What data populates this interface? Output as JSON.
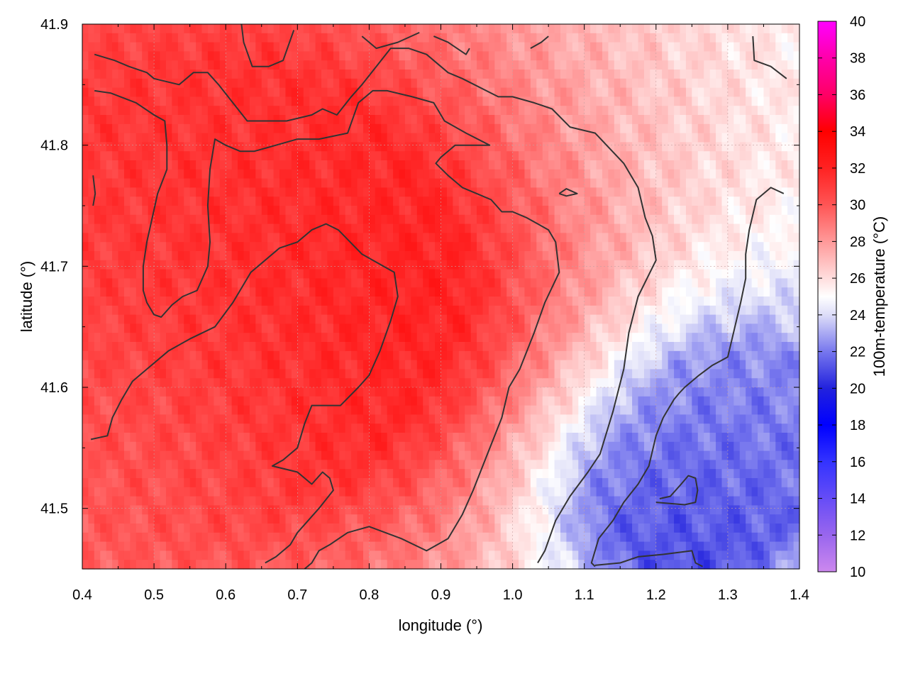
{
  "chart_data": {
    "type": "heatmap",
    "title": "",
    "xlabel": "longitude (°)",
    "ylabel": "latitude (°)",
    "colorbar_label": "100m-temperature (°C)",
    "xlim": [
      0.4,
      1.4
    ],
    "ylim": [
      41.45,
      41.9
    ],
    "x_ticks": [
      0.4,
      0.5,
      0.6,
      0.7,
      0.8,
      0.9,
      1.0,
      1.1,
      1.2,
      1.3,
      1.4
    ],
    "x_tick_labels": [
      "0.4",
      "0.5",
      "0.6",
      "0.7",
      "0.8",
      "0.9",
      "1.0",
      "1.1",
      "1.2",
      "1.3",
      "1.4"
    ],
    "y_ticks": [
      41.5,
      41.6,
      41.7,
      41.8,
      41.9
    ],
    "y_tick_labels": [
      "41.5",
      "41.6",
      "41.7",
      "41.8",
      "41.9"
    ],
    "colorbar_range": [
      10,
      40
    ],
    "colorbar_ticks": [
      10,
      12,
      14,
      16,
      18,
      20,
      22,
      24,
      26,
      28,
      30,
      32,
      34,
      36,
      38,
      40
    ],
    "colorbar_tick_labels": [
      "10",
      "12",
      "14",
      "16",
      "18",
      "20",
      "22",
      "24",
      "26",
      "28",
      "30",
      "32",
      "34",
      "36",
      "38",
      "40"
    ],
    "colormap": [
      {
        "value": 10,
        "color": "#cc88ee"
      },
      {
        "value": 12,
        "color": "#9966ee"
      },
      {
        "value": 16,
        "color": "#3333ff"
      },
      {
        "value": 18,
        "color": "#0000ff"
      },
      {
        "value": 20,
        "color": "#2222dd"
      },
      {
        "value": 22,
        "color": "#7777ee"
      },
      {
        "value": 24,
        "color": "#ddddf8"
      },
      {
        "value": 25,
        "color": "#ffffff"
      },
      {
        "value": 26,
        "color": "#ffdddd"
      },
      {
        "value": 28,
        "color": "#ff9999"
      },
      {
        "value": 30,
        "color": "#ff5555"
      },
      {
        "value": 32,
        "color": "#ff2222"
      },
      {
        "value": 34,
        "color": "#ff0000"
      },
      {
        "value": 36,
        "color": "#ff0066"
      },
      {
        "value": 38,
        "color": "#ff00aa"
      },
      {
        "value": 40,
        "color": "#ff00ff"
      }
    ],
    "grid": true,
    "contour_color": "#333333",
    "temperature_field": {
      "description_centers": [
        {
          "lon": 0.75,
          "lat": 41.66,
          "temp": 32.5,
          "spread": 0.22
        },
        {
          "lon": 0.55,
          "lat": 41.78,
          "temp": 31.0,
          "spread": 0.25
        },
        {
          "lon": 0.45,
          "lat": 41.55,
          "temp": 29.5,
          "spread": 0.2
        },
        {
          "lon": 1.22,
          "lat": 41.5,
          "temp": 20.5,
          "spread": 0.14
        },
        {
          "lon": 1.35,
          "lat": 41.58,
          "temp": 22.5,
          "spread": 0.14
        }
      ]
    },
    "contours": [
      {
        "level": 30,
        "points": [
          [
            0.417,
            41.875
          ],
          [
            0.445,
            41.87
          ],
          [
            0.465,
            41.865
          ],
          [
            0.49,
            41.86
          ],
          [
            0.5,
            41.855
          ],
          [
            0.535,
            41.85
          ],
          [
            0.555,
            41.86
          ],
          [
            0.575,
            41.86
          ],
          [
            0.59,
            41.85
          ],
          [
            0.61,
            41.835
          ],
          [
            0.63,
            41.82
          ],
          [
            0.66,
            41.82
          ],
          [
            0.685,
            41.82
          ],
          [
            0.72,
            41.825
          ],
          [
            0.735,
            41.83
          ],
          [
            0.755,
            41.825
          ],
          [
            0.775,
            41.84
          ],
          [
            0.79,
            41.85
          ],
          [
            0.81,
            41.865
          ],
          [
            0.83,
            41.88
          ],
          [
            0.855,
            41.88
          ],
          [
            0.88,
            41.875
          ],
          [
            0.91,
            41.86
          ],
          [
            0.93,
            41.855
          ],
          [
            0.98,
            41.84
          ],
          [
            1.0,
            41.84
          ],
          [
            1.03,
            41.835
          ],
          [
            1.055,
            41.83
          ],
          [
            1.08,
            41.815
          ],
          [
            1.115,
            41.81
          ],
          [
            1.155,
            41.785
          ],
          [
            1.175,
            41.765
          ],
          [
            1.185,
            41.74
          ],
          [
            1.195,
            41.725
          ],
          [
            1.2,
            41.705
          ],
          [
            1.175,
            41.675
          ],
          [
            1.162,
            41.645
          ],
          [
            1.155,
            41.615
          ],
          [
            1.14,
            41.58
          ],
          [
            1.122,
            41.545
          ],
          [
            1.105,
            41.53
          ],
          [
            1.08,
            41.51
          ],
          [
            1.06,
            41.49
          ],
          [
            1.045,
            41.465
          ],
          [
            1.035,
            41.455
          ]
        ]
      },
      {
        "level": 30,
        "points": [
          [
            0.417,
            41.845
          ],
          [
            0.44,
            41.843
          ],
          [
            0.475,
            41.835
          ],
          [
            0.5,
            41.825
          ],
          [
            0.515,
            41.82
          ],
          [
            0.518,
            41.8
          ],
          [
            0.518,
            41.78
          ],
          [
            0.505,
            41.76
          ],
          [
            0.49,
            41.72
          ],
          [
            0.485,
            41.7
          ],
          [
            0.485,
            41.68
          ],
          [
            0.49,
            41.67
          ],
          [
            0.5,
            41.66
          ],
          [
            0.51,
            41.658
          ],
          [
            0.525,
            41.668
          ],
          [
            0.54,
            41.675
          ],
          [
            0.56,
            41.68
          ],
          [
            0.575,
            41.7
          ],
          [
            0.578,
            41.72
          ],
          [
            0.575,
            41.75
          ],
          [
            0.578,
            41.78
          ],
          [
            0.585,
            41.805
          ],
          [
            0.6,
            41.8
          ],
          [
            0.62,
            41.795
          ],
          [
            0.64,
            41.795
          ],
          [
            0.67,
            41.8
          ],
          [
            0.7,
            41.805
          ],
          [
            0.73,
            41.805
          ],
          [
            0.77,
            41.81
          ],
          [
            0.785,
            41.835
          ],
          [
            0.805,
            41.845
          ],
          [
            0.825,
            41.845
          ],
          [
            0.86,
            41.84
          ],
          [
            0.89,
            41.835
          ],
          [
            0.905,
            41.82
          ],
          [
            0.935,
            41.81
          ],
          [
            0.968,
            41.8
          ],
          [
            0.94,
            41.8
          ],
          [
            0.92,
            41.8
          ],
          [
            0.9,
            41.79
          ],
          [
            0.893,
            41.785
          ],
          [
            0.91,
            41.775
          ],
          [
            0.93,
            41.765
          ],
          [
            0.95,
            41.76
          ],
          [
            0.97,
            41.755
          ],
          [
            0.985,
            41.745
          ],
          [
            1.0,
            41.745
          ],
          [
            1.02,
            41.74
          ],
          [
            1.05,
            41.73
          ],
          [
            1.06,
            41.72
          ],
          [
            1.065,
            41.695
          ],
          [
            1.045,
            41.67
          ],
          [
            1.03,
            41.645
          ],
          [
            1.01,
            41.615
          ],
          [
            0.995,
            41.6
          ],
          [
            0.985,
            41.575
          ],
          [
            0.965,
            41.545
          ],
          [
            0.945,
            41.515
          ],
          [
            0.93,
            41.495
          ],
          [
            0.91,
            41.475
          ],
          [
            0.88,
            41.465
          ],
          [
            0.845,
            41.475
          ],
          [
            0.8,
            41.485
          ],
          [
            0.77,
            41.48
          ],
          [
            0.745,
            41.47
          ],
          [
            0.73,
            41.465
          ],
          [
            0.72,
            41.455
          ],
          [
            0.71,
            41.45
          ]
        ]
      },
      {
        "level": 32,
        "points": [
          [
            0.412,
            41.557
          ],
          [
            0.435,
            41.56
          ],
          [
            0.442,
            41.575
          ],
          [
            0.455,
            41.59
          ],
          [
            0.47,
            41.605
          ],
          [
            0.49,
            41.615
          ],
          [
            0.52,
            41.63
          ],
          [
            0.55,
            41.64
          ],
          [
            0.585,
            41.65
          ],
          [
            0.61,
            41.67
          ],
          [
            0.635,
            41.695
          ],
          [
            0.655,
            41.705
          ],
          [
            0.675,
            41.715
          ],
          [
            0.7,
            41.72
          ],
          [
            0.72,
            41.73
          ],
          [
            0.74,
            41.735
          ],
          [
            0.757,
            41.73
          ],
          [
            0.79,
            41.71
          ],
          [
            0.835,
            41.695
          ],
          [
            0.84,
            41.675
          ],
          [
            0.83,
            41.655
          ],
          [
            0.815,
            41.63
          ],
          [
            0.8,
            41.61
          ],
          [
            0.785,
            41.6
          ],
          [
            0.76,
            41.585
          ],
          [
            0.72,
            41.585
          ],
          [
            0.71,
            41.57
          ],
          [
            0.7,
            41.55
          ],
          [
            0.68,
            41.54
          ],
          [
            0.665,
            41.535
          ],
          [
            0.7,
            41.53
          ],
          [
            0.72,
            41.52
          ],
          [
            0.735,
            41.53
          ],
          [
            0.745,
            41.525
          ],
          [
            0.75,
            41.515
          ],
          [
            0.73,
            41.5
          ],
          [
            0.7,
            41.48
          ],
          [
            0.69,
            41.47
          ],
          [
            0.67,
            41.46
          ],
          [
            0.655,
            41.455
          ]
        ]
      },
      {
        "level": 32,
        "points": [
          [
            0.415,
            41.775
          ],
          [
            0.418,
            41.76
          ],
          [
            0.415,
            41.75
          ]
        ]
      },
      {
        "level": 28,
        "points": [
          [
            0.622,
            41.9
          ],
          [
            0.625,
            41.885
          ],
          [
            0.637,
            41.865
          ],
          [
            0.66,
            41.865
          ],
          [
            0.68,
            41.87
          ],
          [
            0.695,
            41.895
          ]
        ]
      },
      {
        "level": 28,
        "points": [
          [
            0.79,
            41.89
          ],
          [
            0.81,
            41.88
          ],
          [
            0.84,
            41.885
          ],
          [
            0.87,
            41.893
          ]
        ]
      },
      {
        "level": 28,
        "points": [
          [
            0.89,
            41.89
          ],
          [
            0.91,
            41.885
          ],
          [
            0.935,
            41.875
          ],
          [
            0.94,
            41.88
          ]
        ]
      },
      {
        "level": 28,
        "points": [
          [
            1.025,
            41.88
          ],
          [
            1.04,
            41.885
          ],
          [
            1.05,
            41.89
          ]
        ]
      },
      {
        "level": 28,
        "points": [
          [
            1.065,
            41.76
          ],
          [
            1.075,
            41.764
          ],
          [
            1.09,
            41.76
          ],
          [
            1.075,
            41.758
          ],
          [
            1.065,
            41.76
          ]
        ]
      },
      {
        "level": 26,
        "points": [
          [
            1.335,
            41.89
          ],
          [
            1.337,
            41.87
          ],
          [
            1.36,
            41.865
          ],
          [
            1.382,
            41.855
          ]
        ]
      },
      {
        "level": 26,
        "points": [
          [
            1.378,
            41.76
          ],
          [
            1.36,
            41.765
          ],
          [
            1.34,
            41.755
          ],
          [
            1.33,
            41.73
          ],
          [
            1.325,
            41.71
          ],
          [
            1.325,
            41.69
          ],
          [
            1.318,
            41.67
          ],
          [
            1.31,
            41.65
          ],
          [
            1.3,
            41.625
          ],
          [
            1.278,
            41.618
          ],
          [
            1.26,
            41.61
          ],
          [
            1.24,
            41.6
          ],
          [
            1.232,
            41.595
          ],
          [
            1.225,
            41.59
          ],
          [
            1.21,
            41.575
          ],
          [
            1.2,
            41.56
          ],
          [
            1.19,
            41.535
          ],
          [
            1.175,
            41.52
          ],
          [
            1.155,
            41.505
          ],
          [
            1.14,
            41.49
          ],
          [
            1.12,
            41.475
          ],
          [
            1.11,
            41.455
          ],
          [
            1.115,
            41.452
          ]
        ]
      },
      {
        "level": 24,
        "points": [
          [
            1.2,
            41.505
          ],
          [
            1.24,
            41.503
          ],
          [
            1.255,
            41.505
          ],
          [
            1.258,
            41.515
          ],
          [
            1.255,
            41.525
          ],
          [
            1.245,
            41.527
          ],
          [
            1.235,
            41.52
          ],
          [
            1.22,
            41.51
          ],
          [
            1.205,
            41.508
          ]
        ]
      },
      {
        "level": 24,
        "points": [
          [
            1.115,
            41.453
          ],
          [
            1.15,
            41.455
          ],
          [
            1.175,
            41.46
          ],
          [
            1.21,
            41.462
          ],
          [
            1.25,
            41.465
          ],
          [
            1.255,
            41.455
          ],
          [
            1.265,
            41.452
          ]
        ]
      }
    ]
  }
}
